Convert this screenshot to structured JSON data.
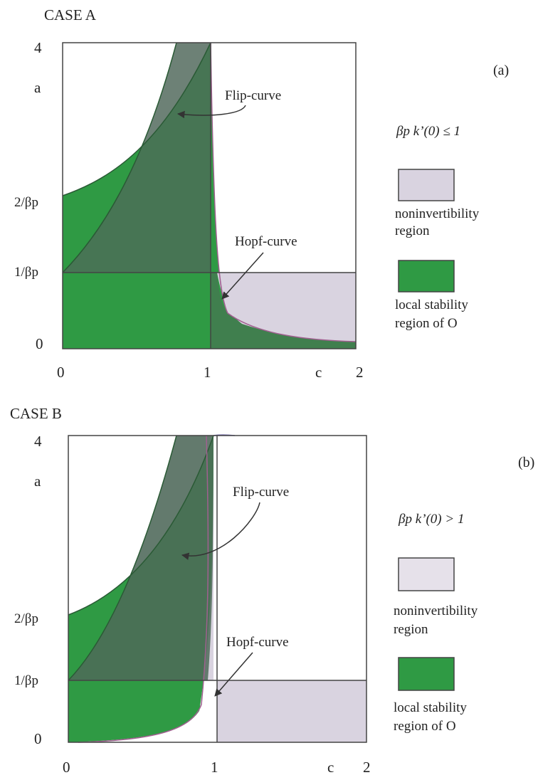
{
  "colors": {
    "green": "#2f9a44",
    "lavender": "#d9d3e0",
    "overlap": "#4e6a58",
    "frame": "#444444",
    "curve": "#6f66a8"
  },
  "panels": [
    {
      "case_label": "CASE  A",
      "panel_letter": "(a)",
      "condition": "βp k’(0) ≤ 1",
      "y_ticks": {
        "top": "4",
        "two_over_beta": "2/βp",
        "one_over_beta": "1/βp",
        "zero": "0"
      },
      "y_axis_label": "a",
      "x_ticks": {
        "zero": "0",
        "one": "1",
        "two": "2"
      },
      "x_axis_label": "c",
      "flip_label": "Flip-curve",
      "hopf_label": "Hopf-curve",
      "legend": [
        {
          "text_line1": "noninvertibility",
          "text_line2": "region",
          "swatch": "lavender"
        },
        {
          "text_line1": "local stability",
          "text_line2": "region of O",
          "swatch": "green"
        }
      ]
    },
    {
      "case_label": "CASE  B",
      "panel_letter": "(b)",
      "condition": "βp k’(0) > 1",
      "y_ticks": {
        "top": "4",
        "two_over_beta": "2/βp",
        "one_over_beta": "1/βp",
        "zero": "0"
      },
      "y_axis_label": "a",
      "x_ticks": {
        "zero": "0",
        "one": "1",
        "two": "2"
      },
      "x_axis_label": "c",
      "flip_label": "Flip-curve",
      "hopf_label": "Hopf-curve",
      "legend": [
        {
          "text_line1": "noninvertibility",
          "text_line2": "region",
          "swatch": "lavender"
        },
        {
          "text_line1": "local stability",
          "text_line2": "region of O",
          "swatch": "green"
        }
      ]
    }
  ]
}
